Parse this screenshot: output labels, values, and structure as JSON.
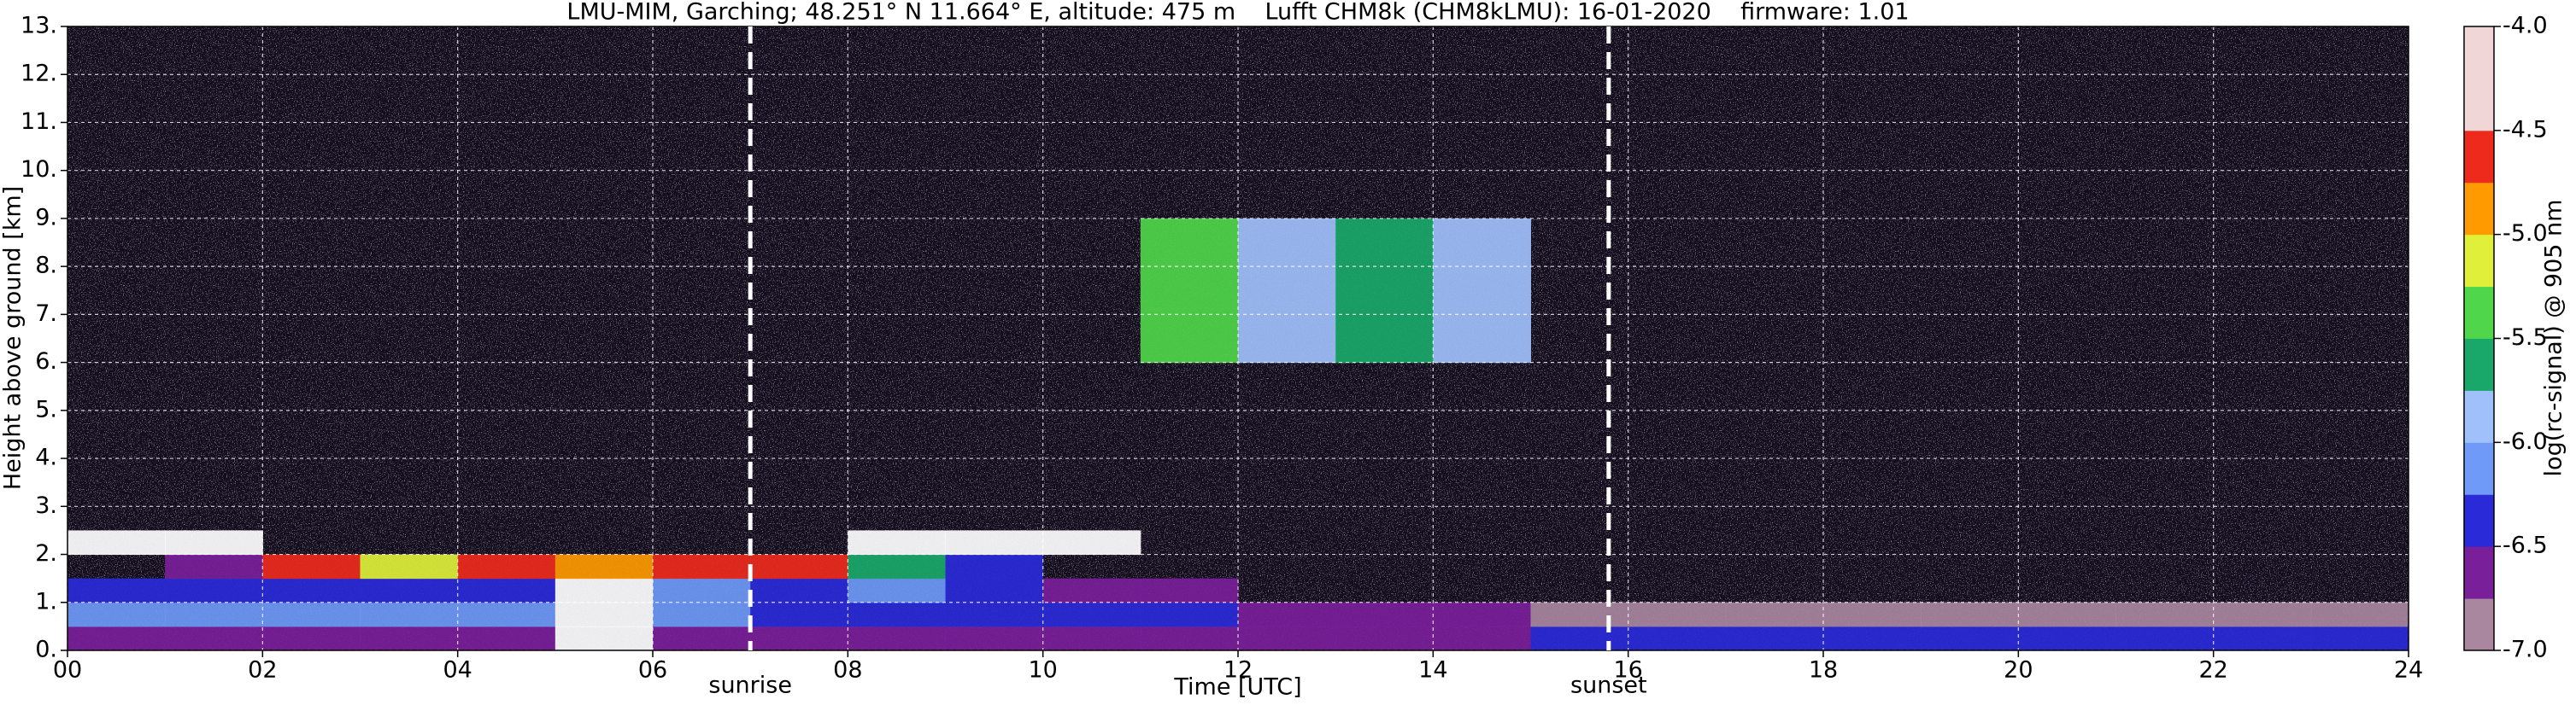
{
  "chart_data": {
    "type": "heatmap",
    "title": "LMU-MIM, Garching; 48.251° N 11.664° E, altitude: 475 m    Lufft CHM8k (CHM8kLMU): 16-01-2020    firmware: 1.01",
    "x_label": "Time [UTC]",
    "y_label": "Height above ground [km]",
    "colorbar_label": "log(rc-signal) @ 905 nm",
    "xlim": [
      0,
      24
    ],
    "ylim": [
      0,
      13
    ],
    "xticks": [
      {
        "value": 0,
        "label": "00"
      },
      {
        "value": 2,
        "label": "02"
      },
      {
        "value": 4,
        "label": "04"
      },
      {
        "value": 6,
        "label": "06"
      },
      {
        "value": 8,
        "label": "08"
      },
      10,
      12,
      14,
      16,
      18,
      20,
      22,
      24
    ],
    "yticks": [
      {
        "value": 0,
        "label": "0."
      },
      {
        "value": 1,
        "label": "1."
      },
      {
        "value": 2,
        "label": "2."
      },
      {
        "value": 3,
        "label": "3."
      },
      {
        "value": 4,
        "label": "4."
      },
      {
        "value": 5,
        "label": "5."
      },
      {
        "value": 6,
        "label": "6."
      },
      {
        "value": 7,
        "label": "7."
      },
      {
        "value": 8,
        "label": "8."
      },
      {
        "value": 9,
        "label": "9."
      },
      {
        "value": 10,
        "label": "10."
      },
      {
        "value": 11,
        "label": "11."
      },
      {
        "value": 12,
        "label": "12."
      },
      {
        "value": 13,
        "label": "13."
      }
    ],
    "grid": true,
    "x_edges": [
      0,
      1,
      2,
      3,
      4,
      5,
      6,
      7,
      8,
      9,
      10,
      11,
      12,
      13,
      14,
      15,
      16,
      17,
      18,
      19,
      20,
      21,
      22,
      23,
      24
    ],
    "y_edges": [
      0,
      0.5,
      1,
      1.5,
      2,
      2.5,
      3,
      6,
      9,
      13
    ],
    "z": [
      [
        -6.7,
        -6.7,
        -6.7,
        -6.7,
        -6.7,
        -4.2,
        -6.6,
        -6.6,
        -6.6,
        -6.6,
        -6.6,
        -6.6,
        -6.6,
        -6.6,
        -6.6,
        -6.45,
        -6.45,
        -6.45,
        -6.45,
        -6.45,
        -6.45,
        -6.45,
        -6.45,
        -6.45
      ],
      [
        -6.2,
        -6.2,
        -6.2,
        -6.2,
        -6.2,
        -4.2,
        -6.1,
        -6.3,
        -6.3,
        -6.3,
        -6.3,
        -6.3,
        -6.55,
        -6.55,
        -6.55,
        -6.85,
        -6.85,
        -6.85,
        -6.85,
        -6.85,
        -6.85,
        -6.85,
        -6.85,
        -6.85
      ],
      [
        -6.4,
        -6.4,
        -6.3,
        -6.3,
        -6.3,
        -4.3,
        -6.1,
        -6.3,
        -6.2,
        -6.4,
        -6.6,
        -6.7,
        null,
        null,
        null,
        null,
        null,
        null,
        null,
        null,
        null,
        null,
        null,
        null
      ],
      [
        null,
        -6.7,
        -4.6,
        -5.1,
        -4.6,
        -4.9,
        -4.6,
        -4.7,
        -5.6,
        -6.4,
        null,
        null,
        null,
        null,
        null,
        null,
        null,
        null,
        null,
        null,
        null,
        null,
        null,
        null
      ],
      [
        -4.4,
        -4.5,
        null,
        null,
        null,
        null,
        null,
        null,
        -4.5,
        -4.4,
        -4.5,
        null,
        null,
        null,
        null,
        null,
        null,
        null,
        null,
        null,
        null,
        null,
        null,
        null
      ],
      [
        null,
        null,
        null,
        null,
        null,
        null,
        null,
        null,
        null,
        null,
        null,
        null,
        null,
        null,
        null,
        null,
        null,
        null,
        null,
        null,
        null,
        null,
        null,
        null
      ],
      [
        null,
        null,
        null,
        null,
        null,
        null,
        null,
        null,
        null,
        null,
        null,
        null,
        null,
        null,
        null,
        null,
        null,
        null,
        null,
        null,
        null,
        null,
        null,
        null
      ],
      [
        null,
        null,
        null,
        null,
        null,
        null,
        null,
        null,
        null,
        null,
        null,
        -5.3,
        -5.8,
        -5.6,
        -6.0,
        null,
        null,
        null,
        null,
        null,
        null,
        null,
        null,
        null
      ],
      [
        null,
        null,
        null,
        null,
        null,
        null,
        null,
        null,
        null,
        null,
        null,
        null,
        null,
        null,
        null,
        null,
        null,
        null,
        null,
        null,
        null,
        null,
        null,
        null
      ]
    ],
    "zlim": [
      -7,
      -4
    ],
    "zticks": [
      {
        "value": -4,
        "label": "-4.0"
      },
      -4.5,
      {
        "value": -5,
        "label": "-5.0"
      },
      -5.5,
      {
        "value": -6,
        "label": "-6.0"
      },
      -6.5,
      {
        "value": -7,
        "label": "-7.0"
      }
    ],
    "colormap": {
      "bounds": [
        -7,
        -6.75,
        -6.5,
        -6.25,
        -6,
        -5.75,
        -5.5,
        -5.25,
        -5,
        -4.75,
        -4.5,
        -4
      ],
      "colors": [
        "#a8879f",
        "#7a1f9a",
        "#2a2ad8",
        "#6f9af7",
        "#9fc0fb",
        "#1aa86a",
        "#4fd64a",
        "#e0f03a",
        "#ff9a00",
        "#ee2a1c",
        "#f0d6d6"
      ],
      "top_color": "#ffffff"
    },
    "vlines": [
      {
        "value": 7.0,
        "label": "sunrise"
      },
      {
        "value": 15.8,
        "label": "sunset"
      }
    ]
  }
}
